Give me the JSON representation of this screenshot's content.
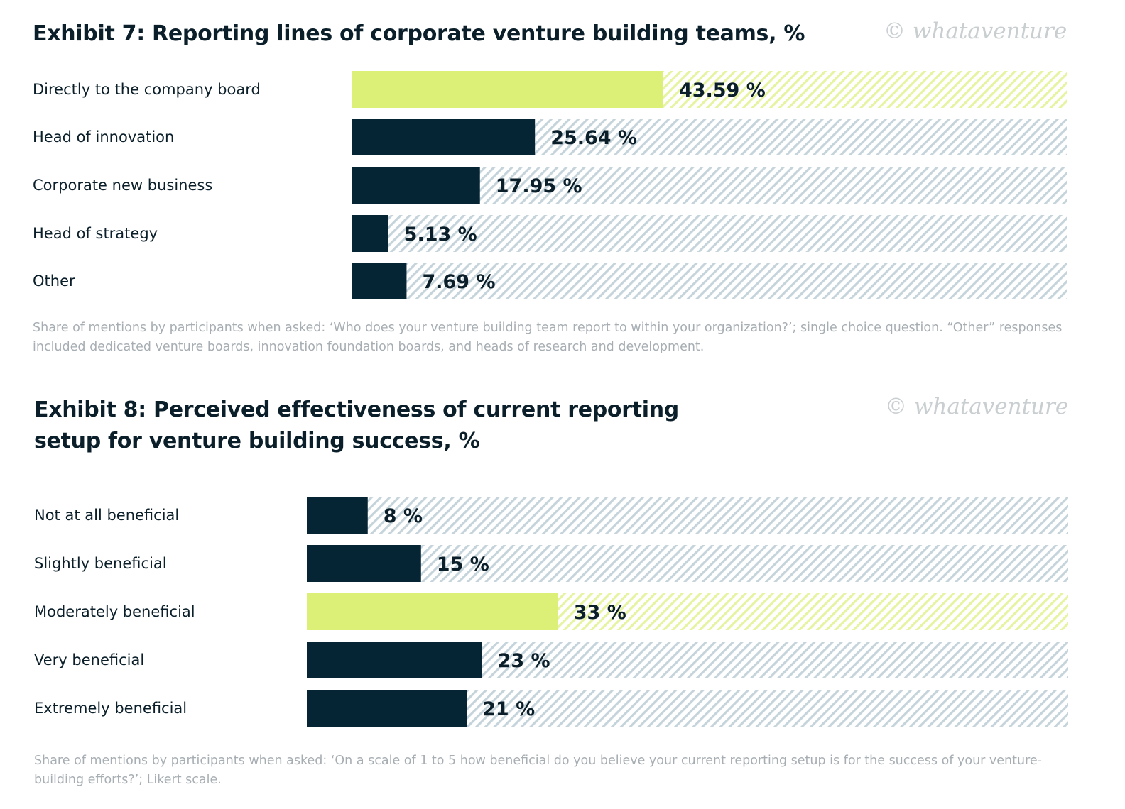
{
  "watermark": "© whataventure",
  "colors": {
    "dark": "#062534",
    "highlight": "#dcf078",
    "hatch_default": "#c5d3db",
    "hatch_highlight": "#e6f3a0"
  },
  "charts": [
    {
      "title": "Exhibit 7: Reporting lines of corporate venture building teams, %",
      "note": "Share of mentions by participants when asked: ‘Who does your venture building team report to within your organization?’; single choice question. “Other” responses included dedicated venture boards, innovation foundation boards, and heads of research and development.",
      "chart_data": {
        "type": "bar",
        "orientation": "horizontal",
        "categories": [
          "Directly to the company board",
          "Head of innovation",
          "Corporate new business",
          "Head of strategy",
          "Other"
        ],
        "values": [
          43.59,
          25.64,
          17.95,
          5.13,
          7.69
        ],
        "value_labels": [
          "43.59 %",
          "25.64 %",
          "17.95 %",
          "5.13 %",
          "7.69 %"
        ],
        "highlight_index": 0,
        "xlim": [
          0,
          100
        ]
      }
    },
    {
      "title": "Exhibit 8: Perceived effectiveness of current reporting setup for venture building success, %",
      "note": "Share of mentions by participants when asked: ‘On a scale of 1 to 5 how beneficial do you believe your current reporting setup is for the success of your venture-building efforts?’; Likert scale.",
      "chart_data": {
        "type": "bar",
        "orientation": "horizontal",
        "categories": [
          "Not at all beneficial",
          "Slightly beneficial",
          "Moderately beneficial",
          "Very beneficial",
          "Extremely beneficial"
        ],
        "values": [
          8,
          15,
          33,
          23,
          21
        ],
        "value_labels": [
          "8 %",
          "15 %",
          "33 %",
          "23 %",
          "21 %"
        ],
        "highlight_index": 2,
        "xlim": [
          0,
          100
        ]
      }
    }
  ]
}
